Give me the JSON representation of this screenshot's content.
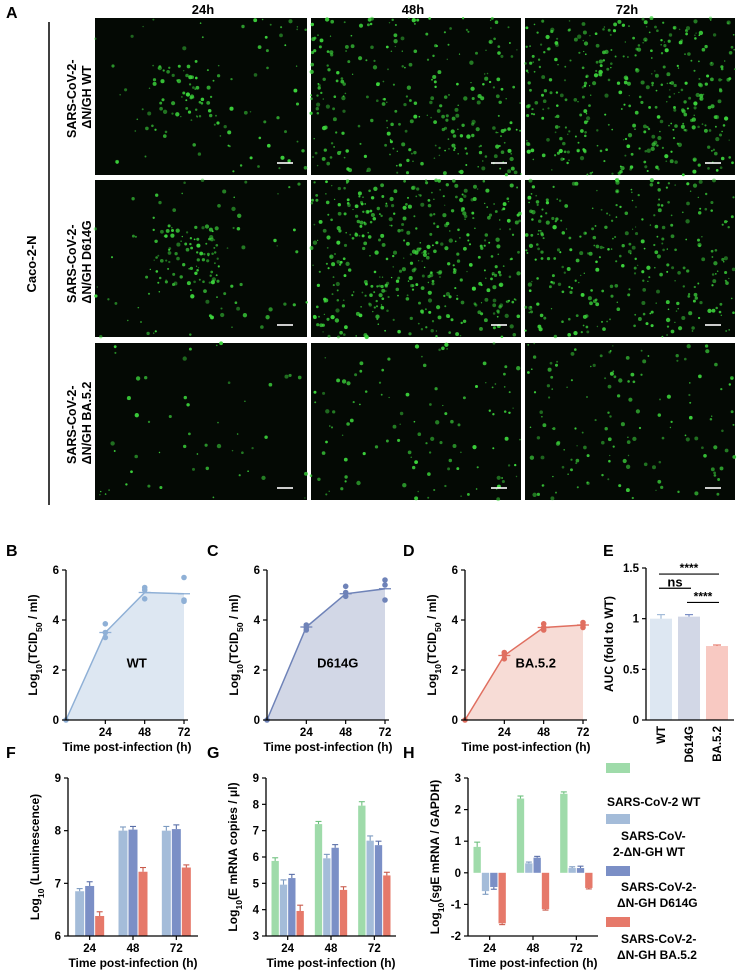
{
  "colors": {
    "wt": "#a4bcd9",
    "wt_fill": "#dde7f2",
    "wt_line": "#8fb0d6",
    "d614g": "#7b8fc6",
    "d614g_fill": "#d2d7e6",
    "d614g_line": "#6f83b8",
    "ba52": "#e6796a",
    "ba52_fill": "#f7dcd6",
    "ba52_line": "#e06f60",
    "cov2": "#9fdbaa",
    "micro_bg": "#040904",
    "micro_cell": "#3cd43c"
  },
  "panelA": {
    "letter": "A",
    "timepoints": [
      "24h",
      "48h",
      "72h"
    ],
    "cell_line": "Caco-2-N",
    "rows": [
      {
        "line1": "SARS-CoV-2-",
        "line2": "ΔN/GH WT",
        "densities": [
          0.25,
          0.55,
          0.75
        ]
      },
      {
        "line1": "SARS-CoV-2-",
        "line2": "ΔN/GH D614G",
        "densities": [
          0.3,
          0.85,
          0.6
        ]
      },
      {
        "line1": "SARS-CoV-2-",
        "line2": "ΔN/GH BA.5.2",
        "densities": [
          0.1,
          0.22,
          0.28
        ]
      }
    ]
  },
  "panelB": {
    "letter": "B",
    "label": "WT"
  },
  "panelC": {
    "letter": "C",
    "label": "D614G"
  },
  "panelD": {
    "letter": "D",
    "label": "BA.5.2"
  },
  "panelE": {
    "letter": "E"
  },
  "panelF": {
    "letter": "F"
  },
  "panelG": {
    "letter": "G"
  },
  "panelH": {
    "letter": "H"
  },
  "legend": [
    {
      "line1": "SARS-CoV-2 WT",
      "line2": "",
      "color": "#9fdbaa"
    },
    {
      "line1": "SARS-CoV-",
      "line2": "2-ΔN-GH WT",
      "color": "#a4bcd9"
    },
    {
      "line1": "SARS-CoV-2-",
      "line2": "ΔN-GH D614G",
      "color": "#7b8fc6"
    },
    {
      "line1": "SARS-CoV-2-",
      "line2": "ΔN-GH BA.5.2",
      "color": "#e6796a"
    }
  ],
  "chart_data": [
    {
      "panel": "B",
      "type": "area",
      "xlabel": "Time post-infection (h)",
      "ylabel": "Log10(TCID50 / ml)",
      "x": [
        0,
        24,
        48,
        72
      ],
      "xticks": [
        "24",
        "48",
        "72"
      ],
      "yticks": [
        "0",
        "2",
        "4",
        "6"
      ],
      "ylim": [
        0,
        6
      ],
      "series": [
        {
          "name": "WT",
          "mean": [
            0,
            3.5,
            5.1,
            5.05
          ],
          "points": [
            [
              0,
              0
            ],
            [
              24,
              3.3
            ],
            [
              24,
              3.5
            ],
            [
              24,
              3.85
            ],
            [
              48,
              4.85
            ],
            [
              48,
              5.2
            ],
            [
              48,
              5.3
            ],
            [
              72,
              4.75
            ],
            [
              72,
              4.8
            ],
            [
              72,
              5.7
            ]
          ]
        }
      ]
    },
    {
      "panel": "C",
      "type": "area",
      "xlabel": "Time post-infection (h)",
      "ylabel": "Log10(TCID50 / ml)",
      "x": [
        0,
        24,
        48,
        72
      ],
      "xticks": [
        "24",
        "48",
        "72"
      ],
      "yticks": [
        "0",
        "2",
        "4",
        "6"
      ],
      "ylim": [
        0,
        6
      ],
      "series": [
        {
          "name": "D614G",
          "mean": [
            0,
            3.72,
            5.05,
            5.25
          ],
          "points": [
            [
              0,
              0
            ],
            [
              24,
              3.6
            ],
            [
              24,
              3.7
            ],
            [
              24,
              3.8
            ],
            [
              48,
              4.95
            ],
            [
              48,
              5.1
            ],
            [
              48,
              5.35
            ],
            [
              72,
              4.8
            ],
            [
              72,
              5.4
            ],
            [
              72,
              5.6
            ]
          ]
        }
      ]
    },
    {
      "panel": "D",
      "type": "area",
      "xlabel": "Time post-infection (h)",
      "ylabel": "Log10(TCID50 / ml)",
      "x": [
        0,
        24,
        48,
        72
      ],
      "xticks": [
        "24",
        "48",
        "72"
      ],
      "yticks": [
        "0",
        "2",
        "4",
        "6"
      ],
      "ylim": [
        0,
        6
      ],
      "series": [
        {
          "name": "BA.5.2",
          "mean": [
            0,
            2.58,
            3.7,
            3.8
          ],
          "points": [
            [
              0,
              0
            ],
            [
              24,
              2.45
            ],
            [
              24,
              2.6
            ],
            [
              24,
              2.7
            ],
            [
              48,
              3.6
            ],
            [
              48,
              3.7
            ],
            [
              48,
              3.85
            ],
            [
              72,
              3.7
            ],
            [
              72,
              3.8
            ],
            [
              72,
              3.9
            ]
          ]
        }
      ]
    },
    {
      "panel": "E",
      "type": "bar",
      "ylabel": "AUC (fold to WT)",
      "categories": [
        "WT",
        "D614G",
        "BA.5.2"
      ],
      "values": [
        1.0,
        1.02,
        0.73
      ],
      "errors": [
        0.04,
        0.02,
        0.01
      ],
      "yticks": [
        "0",
        "0.5",
        "1",
        "1.5"
      ],
      "ylim": [
        0,
        1.5
      ],
      "annotations": [
        {
          "text": "****",
          "from": 0,
          "to": 2,
          "y": 1.44
        },
        {
          "text": "ns",
          "from": 0,
          "to": 1,
          "y": 1.3
        },
        {
          "text": "****",
          "from": 1,
          "to": 2,
          "y": 1.16
        }
      ]
    },
    {
      "panel": "F",
      "type": "bar",
      "xlabel": "Time post-infection (h)",
      "ylabel": "Log10 (Luminescence)",
      "categories": [
        "24",
        "48",
        "72"
      ],
      "yticks": [
        "6",
        "7",
        "8",
        "9"
      ],
      "ylim": [
        6,
        9
      ],
      "series": [
        {
          "name": "SARS-CoV-2-ΔN-GH WT",
          "values": [
            6.85,
            8.0,
            8.0
          ],
          "errors": [
            0.05,
            0.07,
            0.08
          ]
        },
        {
          "name": "SARS-CoV-2-ΔN-GH D614G",
          "values": [
            6.95,
            8.02,
            8.03
          ],
          "errors": [
            0.08,
            0.06,
            0.08
          ]
        },
        {
          "name": "SARS-CoV-2-ΔN-GH BA.5.2",
          "values": [
            6.38,
            7.22,
            7.3
          ],
          "errors": [
            0.08,
            0.08,
            0.05
          ]
        }
      ]
    },
    {
      "panel": "G",
      "type": "bar",
      "xlabel": "Time post-infection (h)",
      "ylabel": "Log10(E mRNA copies / μl)",
      "categories": [
        "24",
        "48",
        "72"
      ],
      "yticks": [
        "3",
        "4",
        "5",
        "6",
        "7",
        "8",
        "9"
      ],
      "ylim": [
        3,
        9
      ],
      "series": [
        {
          "name": "SARS-CoV-2 WT",
          "values": [
            5.85,
            7.25,
            7.95
          ],
          "errors": [
            0.12,
            0.1,
            0.15
          ]
        },
        {
          "name": "SARS-CoV-2-ΔN-GH WT",
          "values": [
            4.95,
            5.95,
            6.62
          ],
          "errors": [
            0.18,
            0.15,
            0.18
          ]
        },
        {
          "name": "SARS-CoV-2-ΔN-GH D614G",
          "values": [
            5.2,
            6.35,
            6.45
          ],
          "errors": [
            0.14,
            0.12,
            0.15
          ]
        },
        {
          "name": "SARS-CoV-2-ΔN-GH BA.5.2",
          "values": [
            3.95,
            4.75,
            5.3
          ],
          "errors": [
            0.22,
            0.12,
            0.12
          ]
        }
      ]
    },
    {
      "panel": "H",
      "type": "bar",
      "xlabel": "Time post-infection (h)",
      "ylabel": "Log10(sgE mRNA / GAPDH)",
      "categories": [
        "24",
        "48",
        "72"
      ],
      "yticks": [
        "-2",
        "-1",
        "0",
        "1",
        "2",
        "3"
      ],
      "ylim": [
        -2,
        3
      ],
      "series": [
        {
          "name": "SARS-CoV-2 WT",
          "values": [
            0.82,
            2.35,
            2.5
          ],
          "errors": [
            0.15,
            0.08,
            0.06
          ]
        },
        {
          "name": "SARS-CoV-2-ΔN-GH WT",
          "values": [
            -0.58,
            0.3,
            0.15
          ],
          "errors": [
            0.1,
            0.04,
            0.04
          ]
        },
        {
          "name": "SARS-CoV-2-ΔN-GH D614G",
          "values": [
            -0.45,
            0.48,
            0.15
          ],
          "errors": [
            0.07,
            0.04,
            0.06
          ]
        },
        {
          "name": "SARS-CoV-2-ΔN-GH BA.5.2",
          "values": [
            -1.6,
            -1.15,
            -0.48
          ],
          "errors": [
            0.04,
            0.03,
            0.03
          ]
        }
      ]
    }
  ]
}
